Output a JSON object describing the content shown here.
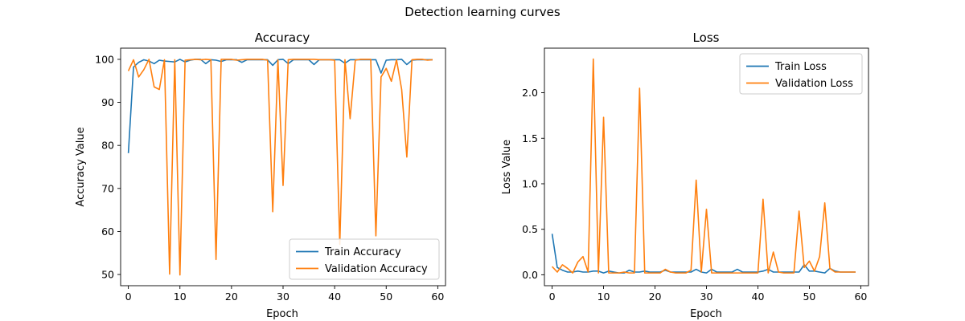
{
  "figure": {
    "title": "Detection learning curves"
  },
  "chart_data": [
    {
      "type": "line",
      "title": "Accuracy",
      "xlabel": "Epoch",
      "ylabel": "Accuracy Value",
      "xlim": [
        -1.5,
        61.5
      ],
      "ylim": [
        47.4,
        102.6
      ],
      "xticks": [
        0,
        10,
        20,
        30,
        40,
        50,
        60
      ],
      "yticks": [
        50,
        60,
        70,
        80,
        90,
        100
      ],
      "legend_position": "lower-right",
      "grid": false,
      "series": [
        {
          "name": "Train Accuracy",
          "color": "#1f77b4",
          "x": [
            0,
            1,
            2,
            3,
            4,
            5,
            6,
            7,
            8,
            9,
            10,
            11,
            12,
            13,
            14,
            15,
            16,
            17,
            18,
            19,
            20,
            21,
            22,
            23,
            24,
            25,
            26,
            27,
            28,
            29,
            30,
            31,
            32,
            33,
            34,
            35,
            36,
            37,
            38,
            39,
            40,
            41,
            42,
            43,
            44,
            45,
            46,
            47,
            48,
            49,
            50,
            51,
            52,
            53,
            54,
            55,
            56,
            57,
            58,
            59
          ],
          "values": [
            78.2,
            98.2,
            99.3,
            99.9,
            99.6,
            99.0,
            99.8,
            99.6,
            99.5,
            99.4,
            100,
            99.4,
            99.8,
            100,
            100,
            99.0,
            99.9,
            99.8,
            99.5,
            99.9,
            99.9,
            99.9,
            99.3,
            99.9,
            99.9,
            99.9,
            99.9,
            99.9,
            98.6,
            99.9,
            100,
            99.0,
            99.9,
            99.9,
            99.9,
            99.9,
            98.8,
            99.9,
            99.9,
            99.9,
            99.9,
            99.9,
            99.1,
            99.9,
            99.9,
            99.9,
            99.9,
            99.9,
            99.9,
            96.8,
            99.8,
            99.9,
            99.9,
            100,
            98.8,
            99.8,
            99.9,
            99.9,
            99.9,
            99.9
          ]
        },
        {
          "name": "Validation Accuracy",
          "color": "#ff7f0e",
          "x": [
            0,
            1,
            2,
            3,
            4,
            5,
            6,
            7,
            8,
            9,
            10,
            11,
            12,
            13,
            14,
            15,
            16,
            17,
            18,
            19,
            20,
            21,
            22,
            23,
            24,
            25,
            26,
            27,
            28,
            29,
            30,
            31,
            32,
            33,
            34,
            35,
            36,
            37,
            38,
            39,
            40,
            41,
            42,
            43,
            44,
            45,
            46,
            47,
            48,
            49,
            50,
            51,
            52,
            53,
            54,
            55,
            56,
            57,
            58,
            59
          ],
          "values": [
            97.3,
            99.9,
            95.9,
            97.6,
            100,
            93.6,
            93.0,
            99.9,
            50.1,
            99.9,
            49.9,
            99.8,
            99.9,
            100,
            99.9,
            100,
            99.9,
            53.5,
            100,
            100,
            100,
            99.8,
            99.9,
            100,
            100,
            100,
            100,
            99.8,
            64.6,
            99.9,
            70.7,
            99.9,
            100,
            100,
            100,
            100,
            100,
            99.9,
            99.9,
            99.9,
            99.8,
            57.0,
            99.9,
            86.2,
            99.8,
            100,
            100,
            100,
            59.0,
            95.9,
            97.9,
            94.9,
            99.9,
            93.0,
            77.3,
            99.9,
            100,
            100,
            99.8,
            99.9
          ]
        }
      ]
    },
    {
      "type": "line",
      "title": "Loss",
      "xlabel": "Epoch",
      "ylabel": "Loss Value",
      "xlim": [
        -1.5,
        61.5
      ],
      "ylim": [
        -0.12,
        2.49
      ],
      "xticks": [
        0,
        10,
        20,
        30,
        40,
        50,
        60
      ],
      "yticks": [
        0.0,
        0.5,
        1.0,
        1.5,
        2.0
      ],
      "ytick_labels": [
        "0.0",
        "0.5",
        "1.0",
        "1.5",
        "2.0"
      ],
      "legend_position": "upper-right",
      "grid": false,
      "series": [
        {
          "name": "Train Loss",
          "color": "#1f77b4",
          "x": [
            0,
            1,
            2,
            3,
            4,
            5,
            6,
            7,
            8,
            9,
            10,
            11,
            12,
            13,
            14,
            15,
            16,
            17,
            18,
            19,
            20,
            21,
            22,
            23,
            24,
            25,
            26,
            27,
            28,
            29,
            30,
            31,
            32,
            33,
            34,
            35,
            36,
            37,
            38,
            39,
            40,
            41,
            42,
            43,
            44,
            45,
            46,
            47,
            48,
            49,
            50,
            51,
            52,
            53,
            54,
            55,
            56,
            57,
            58,
            59
          ],
          "values": [
            0.45,
            0.08,
            0.05,
            0.03,
            0.03,
            0.04,
            0.03,
            0.03,
            0.04,
            0.04,
            0.02,
            0.04,
            0.03,
            0.02,
            0.02,
            0.05,
            0.03,
            0.03,
            0.04,
            0.03,
            0.03,
            0.03,
            0.05,
            0.03,
            0.03,
            0.03,
            0.03,
            0.03,
            0.06,
            0.03,
            0.02,
            0.06,
            0.03,
            0.03,
            0.03,
            0.03,
            0.06,
            0.03,
            0.03,
            0.03,
            0.03,
            0.04,
            0.06,
            0.03,
            0.03,
            0.03,
            0.03,
            0.03,
            0.03,
            0.11,
            0.04,
            0.04,
            0.03,
            0.02,
            0.07,
            0.04,
            0.03,
            0.03,
            0.03,
            0.03
          ]
        },
        {
          "name": "Validation Loss",
          "color": "#ff7f0e",
          "x": [
            0,
            1,
            2,
            3,
            4,
            5,
            6,
            7,
            8,
            9,
            10,
            11,
            12,
            13,
            14,
            15,
            16,
            17,
            18,
            19,
            20,
            21,
            22,
            23,
            24,
            25,
            26,
            27,
            28,
            29,
            30,
            31,
            32,
            33,
            34,
            35,
            36,
            37,
            38,
            39,
            40,
            41,
            42,
            43,
            44,
            45,
            46,
            47,
            48,
            49,
            50,
            51,
            52,
            53,
            54,
            55,
            56,
            57,
            58,
            59
          ],
          "values": [
            0.09,
            0.03,
            0.11,
            0.07,
            0.02,
            0.14,
            0.2,
            0.03,
            2.37,
            0.02,
            1.73,
            0.02,
            0.02,
            0.02,
            0.03,
            0.02,
            0.02,
            2.05,
            0.02,
            0.02,
            0.02,
            0.02,
            0.06,
            0.03,
            0.02,
            0.02,
            0.02,
            0.05,
            1.04,
            0.03,
            0.72,
            0.02,
            0.02,
            0.02,
            0.02,
            0.02,
            0.02,
            0.02,
            0.02,
            0.02,
            0.02,
            0.83,
            0.02,
            0.25,
            0.03,
            0.02,
            0.02,
            0.02,
            0.7,
            0.08,
            0.15,
            0.04,
            0.2,
            0.79,
            0.07,
            0.03,
            0.03,
            0.03,
            0.03,
            0.03
          ]
        }
      ]
    }
  ]
}
